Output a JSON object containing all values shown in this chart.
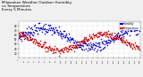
{
  "title": "Milwaukee Weather Outdoor Humidity\nvs Temperature\nEvery 5 Minutes",
  "title_fontsize": 3.0,
  "bg_color": "#f0f0f0",
  "plot_bg_color": "#ffffff",
  "grid_color": "#bbbbbb",
  "ylim": [
    10,
    90
  ],
  "xlim": [
    0,
    288
  ],
  "legend_labels": [
    "Humidity",
    "Temperature"
  ],
  "humidity_color": "#0000cc",
  "temp_color": "#cc0000",
  "legend_humidity_color": "#0000ff",
  "legend_temp_color": "#ff0000",
  "dot_size": 1.2,
  "seed": 7
}
